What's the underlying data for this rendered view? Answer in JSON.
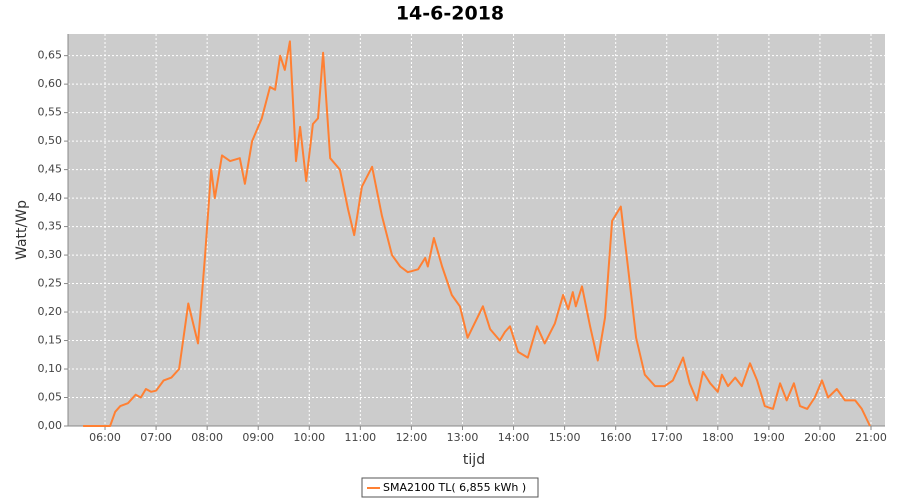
{
  "chart_data": {
    "type": "line",
    "title": "14-6-2018",
    "x_label": "tijd",
    "y_label": "Watt/Wp",
    "x": [
      5.57,
      6.1,
      6.2,
      6.3,
      6.45,
      6.6,
      6.7,
      6.8,
      6.9,
      7.0,
      7.15,
      7.3,
      7.45,
      7.63,
      7.82,
      7.96,
      8.08,
      8.15,
      8.29,
      8.45,
      8.64,
      8.74,
      8.88,
      9.07,
      9.23,
      9.33,
      9.43,
      9.52,
      9.62,
      9.74,
      9.82,
      9.94,
      10.07,
      10.17,
      10.27,
      10.41,
      10.6,
      10.76,
      10.88,
      11.03,
      11.23,
      11.42,
      11.62,
      11.78,
      11.93,
      12.13,
      12.27,
      12.32,
      12.44,
      12.6,
      12.79,
      12.95,
      13.1,
      13.4,
      13.54,
      13.73,
      13.83,
      13.93,
      14.09,
      14.28,
      14.46,
      14.61,
      14.81,
      14.97,
      15.07,
      15.16,
      15.22,
      15.34,
      15.5,
      15.65,
      15.79,
      15.93,
      16.1,
      16.24,
      16.4,
      16.57,
      16.77,
      16.96,
      17.12,
      17.32,
      17.45,
      17.59,
      17.71,
      17.85,
      18.0,
      18.08,
      18.2,
      18.34,
      18.47,
      18.63,
      18.77,
      18.92,
      19.08,
      19.22,
      19.35,
      19.49,
      19.61,
      19.75,
      19.9,
      20.04,
      20.16,
      20.33,
      20.49,
      20.69,
      20.82,
      20.98
    ],
    "series": [
      {
        "name": "SMA2100 TL( 6,855 kWh )",
        "color": "#ff8033",
        "values": [
          0,
          0,
          0.025,
          0.035,
          0.04,
          0.055,
          0.05,
          0.065,
          0.06,
          0.062,
          0.08,
          0.085,
          0.1,
          0.215,
          0.145,
          0.3,
          0.45,
          0.4,
          0.475,
          0.465,
          0.47,
          0.425,
          0.5,
          0.54,
          0.595,
          0.59,
          0.65,
          0.625,
          0.675,
          0.465,
          0.525,
          0.43,
          0.53,
          0.54,
          0.655,
          0.47,
          0.45,
          0.38,
          0.335,
          0.42,
          0.455,
          0.37,
          0.3,
          0.28,
          0.27,
          0.275,
          0.295,
          0.28,
          0.33,
          0.28,
          0.23,
          0.21,
          0.155,
          0.21,
          0.17,
          0.15,
          0.165,
          0.175,
          0.13,
          0.12,
          0.175,
          0.145,
          0.18,
          0.23,
          0.205,
          0.235,
          0.21,
          0.245,
          0.175,
          0.115,
          0.19,
          0.36,
          0.385,
          0.28,
          0.155,
          0.09,
          0.07,
          0.07,
          0.08,
          0.12,
          0.075,
          0.045,
          0.095,
          0.075,
          0.06,
          0.09,
          0.07,
          0.085,
          0.07,
          0.11,
          0.08,
          0.035,
          0.03,
          0.075,
          0.045,
          0.075,
          0.035,
          0.03,
          0.05,
          0.08,
          0.05,
          0.065,
          0.045,
          0.045,
          0.03,
          0
        ]
      }
    ],
    "xlim": [
      5.275,
      21.274
    ],
    "ylim": [
      0,
      0.688
    ],
    "xticks": [
      {
        "value": 6,
        "label": "06:00"
      },
      {
        "value": 7,
        "label": "07:00"
      },
      {
        "value": 8,
        "label": "08:00"
      },
      {
        "value": 9,
        "label": "09:00"
      },
      {
        "value": 10,
        "label": "10:00"
      },
      {
        "value": 11,
        "label": "11:00"
      },
      {
        "value": 12,
        "label": "12:00"
      },
      {
        "value": 13,
        "label": "13:00"
      },
      {
        "value": 14,
        "label": "14:00"
      },
      {
        "value": 15,
        "label": "15:00"
      },
      {
        "value": 16,
        "label": "16:00"
      },
      {
        "value": 17,
        "label": "17:00"
      },
      {
        "value": 18,
        "label": "18:00"
      },
      {
        "value": 19,
        "label": "19:00"
      },
      {
        "value": 20,
        "label": "20:00"
      },
      {
        "value": 21,
        "label": "21:00"
      }
    ],
    "yticks": [
      {
        "value": 0,
        "label": "0,00"
      },
      {
        "value": 0.05,
        "label": "0,05"
      },
      {
        "value": 0.1,
        "label": "0,10"
      },
      {
        "value": 0.15,
        "label": "0,15"
      },
      {
        "value": 0.2,
        "label": "0,20"
      },
      {
        "value": 0.25,
        "label": "0,25"
      },
      {
        "value": 0.3,
        "label": "0,30"
      },
      {
        "value": 0.35,
        "label": "0,35"
      },
      {
        "value": 0.4,
        "label": "0,40"
      },
      {
        "value": 0.45,
        "label": "0,45"
      },
      {
        "value": 0.5,
        "label": "0,50"
      },
      {
        "value": 0.55,
        "label": "0,55"
      },
      {
        "value": 0.6,
        "label": "0,60"
      },
      {
        "value": 0.65,
        "label": "0,65"
      }
    ],
    "grid": true
  }
}
